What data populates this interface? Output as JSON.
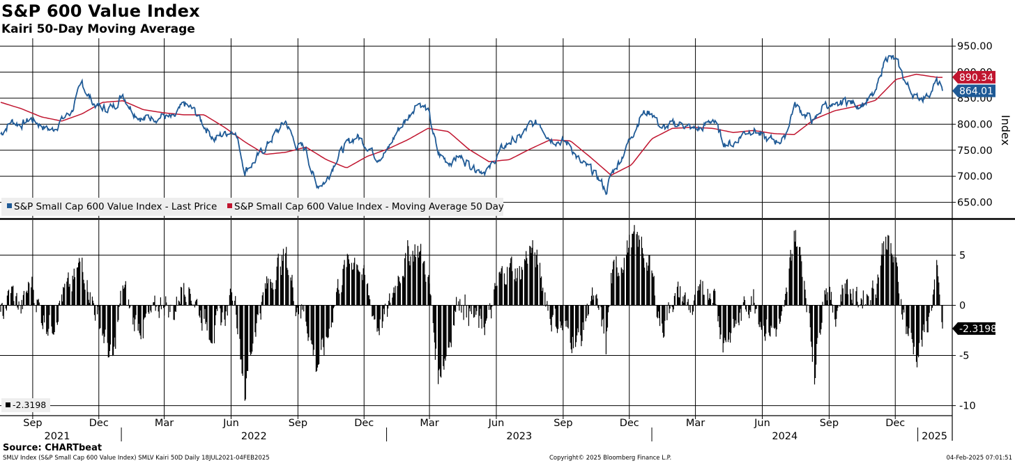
{
  "header": {
    "title": "S&P 600 Value Index",
    "subtitle": "Kairi 50-Day Moving Average"
  },
  "footer": {
    "source": "Source: CHARTbeat",
    "description": "SMLV Index (S&P Small Cap 600 Value Index) SMLV Kairi 50D  Daily 18JUL2021-04FEB2025",
    "copyright": "Copyright© 2025 Bloomberg Finance L.P.",
    "timestamp": "04-Feb-2025 07:01:51"
  },
  "colors": {
    "price": "#1f5a96",
    "moving_average": "#c0152f",
    "kairi": "#000000",
    "grid": "#000000"
  },
  "chart_data": [
    {
      "type": "line",
      "panel": "top",
      "ylabel": "Index",
      "ylim": [
        620,
        965
      ],
      "yticks": [
        "650.00",
        "700.00",
        "750.00",
        "800.00",
        "850.00",
        "900.00",
        "950.00"
      ],
      "legend_placement": "bottom-left",
      "grid": true,
      "series": [
        {
          "name": "S&P Small Cap 600 Value Index - Last Price",
          "last_value_label": "864.01",
          "points": [
            [
              "2021-07-19",
              781
            ],
            [
              "2021-08-02",
              806
            ],
            [
              "2021-08-16",
              800
            ],
            [
              "2021-08-30",
              810
            ],
            [
              "2021-09-13",
              798
            ],
            [
              "2021-09-27",
              788
            ],
            [
              "2021-10-11",
              808
            ],
            [
              "2021-10-25",
              826
            ],
            [
              "2021-11-08",
              878
            ],
            [
              "2021-11-22",
              842
            ],
            [
              "2021-12-06",
              830
            ],
            [
              "2021-12-20",
              832
            ],
            [
              "2022-01-03",
              858
            ],
            [
              "2022-01-17",
              826
            ],
            [
              "2022-01-31",
              810
            ],
            [
              "2022-02-14",
              814
            ],
            [
              "2022-02-28",
              816
            ],
            [
              "2022-03-14",
              808
            ],
            [
              "2022-03-28",
              838
            ],
            [
              "2022-04-11",
              826
            ],
            [
              "2022-04-25",
              798
            ],
            [
              "2022-05-09",
              772
            ],
            [
              "2022-05-23",
              782
            ],
            [
              "2022-06-06",
              792
            ],
            [
              "2022-06-20",
              712
            ],
            [
              "2022-07-04",
              730
            ],
            [
              "2022-07-18",
              755
            ],
            [
              "2022-08-01",
              782
            ],
            [
              "2022-08-15",
              806
            ],
            [
              "2022-08-29",
              760
            ],
            [
              "2022-09-12",
              752
            ],
            [
              "2022-09-26",
              682
            ],
            [
              "2022-10-10",
              692
            ],
            [
              "2022-10-24",
              736
            ],
            [
              "2022-11-07",
              760
            ],
            [
              "2022-11-21",
              778
            ],
            [
              "2022-12-05",
              760
            ],
            [
              "2022-12-19",
              738
            ],
            [
              "2023-01-02",
              748
            ],
            [
              "2023-01-16",
              788
            ],
            [
              "2023-01-30",
              812
            ],
            [
              "2023-02-13",
              846
            ],
            [
              "2023-02-27",
              826
            ],
            [
              "2023-03-13",
              742
            ],
            [
              "2023-03-27",
              728
            ],
            [
              "2023-04-10",
              738
            ],
            [
              "2023-04-24",
              725
            ],
            [
              "2023-05-08",
              714
            ],
            [
              "2023-05-22",
              712
            ],
            [
              "2023-06-05",
              746
            ],
            [
              "2023-06-19",
              766
            ],
            [
              "2023-07-03",
              772
            ],
            [
              "2023-07-17",
              798
            ],
            [
              "2023-07-31",
              802
            ],
            [
              "2023-08-14",
              774
            ],
            [
              "2023-08-28",
              768
            ],
            [
              "2023-09-11",
              760
            ],
            [
              "2023-09-25",
              724
            ],
            [
              "2023-10-09",
              712
            ],
            [
              "2023-10-23",
              690
            ],
            [
              "2023-10-30",
              670
            ],
            [
              "2023-11-06",
              702
            ],
            [
              "2023-11-20",
              736
            ],
            [
              "2023-12-04",
              778
            ],
            [
              "2023-12-18",
              820
            ],
            [
              "2024-01-01",
              824
            ],
            [
              "2024-01-15",
              790
            ],
            [
              "2024-01-29",
              798
            ],
            [
              "2024-02-12",
              802
            ],
            [
              "2024-02-26",
              790
            ],
            [
              "2024-03-11",
              792
            ],
            [
              "2024-03-25",
              812
            ],
            [
              "2024-04-08",
              766
            ],
            [
              "2024-04-22",
              762
            ],
            [
              "2024-05-06",
              784
            ],
            [
              "2024-05-20",
              792
            ],
            [
              "2024-06-03",
              772
            ],
            [
              "2024-06-17",
              768
            ],
            [
              "2024-07-01",
              770
            ],
            [
              "2024-07-15",
              838
            ],
            [
              "2024-07-29",
              820
            ],
            [
              "2024-08-12",
              804
            ],
            [
              "2024-08-26",
              842
            ],
            [
              "2024-09-09",
              828
            ],
            [
              "2024-09-23",
              846
            ],
            [
              "2024-10-07",
              838
            ],
            [
              "2024-10-21",
              842
            ],
            [
              "2024-11-04",
              858
            ],
            [
              "2024-11-18",
              932
            ],
            [
              "2024-12-02",
              922
            ],
            [
              "2024-12-16",
              878
            ],
            [
              "2024-12-30",
              850
            ],
            [
              "2025-01-13",
              855
            ],
            [
              "2025-01-27",
              880
            ],
            [
              "2025-02-04",
              864
            ]
          ]
        },
        {
          "name": "S&P Small Cap 600 Value Index - Moving Average 50 Day",
          "last_value_label": "890.34",
          "points": [
            [
              "2021-07-19",
              842
            ],
            [
              "2021-08-16",
              830
            ],
            [
              "2021-09-13",
              814
            ],
            [
              "2021-10-11",
              806
            ],
            [
              "2021-11-08",
              820
            ],
            [
              "2021-12-06",
              842
            ],
            [
              "2022-01-03",
              845
            ],
            [
              "2022-01-31",
              828
            ],
            [
              "2022-02-28",
              822
            ],
            [
              "2022-03-28",
              818
            ],
            [
              "2022-04-25",
              818
            ],
            [
              "2022-05-23",
              794
            ],
            [
              "2022-06-20",
              766
            ],
            [
              "2022-07-18",
              742
            ],
            [
              "2022-08-15",
              746
            ],
            [
              "2022-09-12",
              756
            ],
            [
              "2022-10-10",
              732
            ],
            [
              "2022-11-07",
              716
            ],
            [
              "2022-12-05",
              738
            ],
            [
              "2023-01-02",
              752
            ],
            [
              "2023-01-30",
              770
            ],
            [
              "2023-02-27",
              792
            ],
            [
              "2023-03-27",
              786
            ],
            [
              "2023-04-24",
              752
            ],
            [
              "2023-05-22",
              728
            ],
            [
              "2023-06-19",
              732
            ],
            [
              "2023-07-17",
              752
            ],
            [
              "2023-08-14",
              770
            ],
            [
              "2023-09-11",
              768
            ],
            [
              "2023-10-09",
              736
            ],
            [
              "2023-11-06",
              702
            ],
            [
              "2023-12-04",
              722
            ],
            [
              "2024-01-01",
              772
            ],
            [
              "2024-01-29",
              792
            ],
            [
              "2024-02-26",
              794
            ],
            [
              "2024-03-25",
              792
            ],
            [
              "2024-04-22",
              784
            ],
            [
              "2024-05-20",
              788
            ],
            [
              "2024-06-17",
              782
            ],
            [
              "2024-07-15",
              780
            ],
            [
              "2024-08-12",
              810
            ],
            [
              "2024-09-09",
              826
            ],
            [
              "2024-10-07",
              834
            ],
            [
              "2024-11-04",
              846
            ],
            [
              "2024-12-02",
              886
            ],
            [
              "2024-12-30",
              896
            ],
            [
              "2025-01-27",
              890
            ],
            [
              "2025-02-04",
              890
            ]
          ]
        }
      ]
    },
    {
      "type": "bar",
      "panel": "bottom",
      "name": "SMLV Kairi 50D",
      "ylim": [
        -11,
        8.5
      ],
      "yticks": [
        "-10",
        "-5",
        "0",
        "5"
      ],
      "last_value_label": "-2.3198",
      "legend_entry": "-2.3198",
      "grid": true,
      "points": [
        [
          "2021-07-19",
          -1.5
        ],
        [
          "2021-08-02",
          1.5
        ],
        [
          "2021-08-16",
          -0.5
        ],
        [
          "2021-08-30",
          2.5
        ],
        [
          "2021-09-13",
          -1.0
        ],
        [
          "2021-09-27",
          -2.0
        ],
        [
          "2021-10-11",
          1.0
        ],
        [
          "2021-10-25",
          1.8
        ],
        [
          "2021-11-08",
          4.5
        ],
        [
          "2021-11-22",
          0.5
        ],
        [
          "2021-12-06",
          -2.5
        ],
        [
          "2021-12-20",
          -6.0
        ],
        [
          "2022-01-03",
          2.0
        ],
        [
          "2022-01-17",
          -1.5
        ],
        [
          "2022-01-31",
          -2.0
        ],
        [
          "2022-02-14",
          -1.0
        ],
        [
          "2022-02-28",
          0.5
        ],
        [
          "2022-03-14",
          -0.8
        ],
        [
          "2022-03-28",
          2.5
        ],
        [
          "2022-04-11",
          0.8
        ],
        [
          "2022-04-25",
          -1.5
        ],
        [
          "2022-05-09",
          -2.5
        ],
        [
          "2022-05-23",
          -1.0
        ],
        [
          "2022-06-06",
          1.5
        ],
        [
          "2022-06-20",
          -8.7
        ],
        [
          "2022-07-04",
          -2.0
        ],
        [
          "2022-07-18",
          1.5
        ],
        [
          "2022-08-01",
          3.5
        ],
        [
          "2022-08-15",
          5.0
        ],
        [
          "2022-08-29",
          0.5
        ],
        [
          "2022-09-12",
          -1.0
        ],
        [
          "2022-09-26",
          -6.0
        ],
        [
          "2022-10-10",
          -4.0
        ],
        [
          "2022-10-24",
          1.5
        ],
        [
          "2022-11-07",
          4.0
        ],
        [
          "2022-11-21",
          5.0
        ],
        [
          "2022-12-05",
          1.5
        ],
        [
          "2022-12-19",
          -2.0
        ],
        [
          "2023-01-02",
          -1.0
        ],
        [
          "2023-01-16",
          3.0
        ],
        [
          "2023-01-30",
          5.0
        ],
        [
          "2023-02-13",
          5.8
        ],
        [
          "2023-02-27",
          3.0
        ],
        [
          "2023-03-13",
          -7.0
        ],
        [
          "2023-03-27",
          -4.0
        ],
        [
          "2023-04-10",
          1.0
        ],
        [
          "2023-04-24",
          -0.5
        ],
        [
          "2023-05-08",
          -2.0
        ],
        [
          "2023-05-22",
          -1.5
        ],
        [
          "2023-06-05",
          2.5
        ],
        [
          "2023-06-19",
          4.0
        ],
        [
          "2023-07-03",
          3.0
        ],
        [
          "2023-07-17",
          5.8
        ],
        [
          "2023-07-31",
          3.5
        ],
        [
          "2023-08-14",
          -1.0
        ],
        [
          "2023-08-28",
          -2.0
        ],
        [
          "2023-09-11",
          -3.0
        ],
        [
          "2023-09-25",
          -3.5
        ],
        [
          "2023-10-09",
          1.0
        ],
        [
          "2023-10-23",
          -1.5
        ],
        [
          "2023-10-30",
          -4.0
        ],
        [
          "2023-11-06",
          2.5
        ],
        [
          "2023-11-20",
          4.5
        ],
        [
          "2023-12-04",
          6.5
        ],
        [
          "2023-12-18",
          6.0
        ],
        [
          "2024-01-01",
          3.0
        ],
        [
          "2024-01-15",
          -2.5
        ],
        [
          "2024-01-29",
          0.8
        ],
        [
          "2024-02-12",
          1.0
        ],
        [
          "2024-02-26",
          -0.5
        ],
        [
          "2024-03-11",
          1.0
        ],
        [
          "2024-03-25",
          2.0
        ],
        [
          "2024-04-08",
          -3.5
        ],
        [
          "2024-04-22",
          -2.5
        ],
        [
          "2024-05-06",
          -0.5
        ],
        [
          "2024-05-20",
          1.0
        ],
        [
          "2024-06-03",
          -2.0
        ],
        [
          "2024-06-17",
          -2.5
        ],
        [
          "2024-07-01",
          -1.5
        ],
        [
          "2024-07-15",
          7.6
        ],
        [
          "2024-07-29",
          3.0
        ],
        [
          "2024-08-12",
          -6.5
        ],
        [
          "2024-08-26",
          2.5
        ],
        [
          "2024-09-09",
          -1.0
        ],
        [
          "2024-09-23",
          2.5
        ],
        [
          "2024-10-07",
          0.5
        ],
        [
          "2024-10-21",
          1.0
        ],
        [
          "2024-11-04",
          2.0
        ],
        [
          "2024-11-18",
          7.2
        ],
        [
          "2024-12-02",
          3.5
        ],
        [
          "2024-12-16",
          -2.0
        ],
        [
          "2024-12-30",
          -5.0
        ],
        [
          "2025-01-13",
          -2.5
        ],
        [
          "2025-01-27",
          3.0
        ],
        [
          "2025-02-04",
          -2.3198
        ]
      ]
    }
  ],
  "x_axis": {
    "start": "2021-07-18",
    "end": "2025-02-04",
    "months": [
      {
        "label": "Sep",
        "date": "2021-09-01"
      },
      {
        "label": "Dec",
        "date": "2021-12-01"
      },
      {
        "label": "Mar",
        "date": "2022-03-01"
      },
      {
        "label": "Jun",
        "date": "2022-06-01"
      },
      {
        "label": "Sep",
        "date": "2022-09-01"
      },
      {
        "label": "Dec",
        "date": "2022-12-01"
      },
      {
        "label": "Mar",
        "date": "2023-03-01"
      },
      {
        "label": "Jun",
        "date": "2023-06-01"
      },
      {
        "label": "Sep",
        "date": "2023-09-01"
      },
      {
        "label": "Dec",
        "date": "2023-12-01"
      },
      {
        "label": "Mar",
        "date": "2024-03-01"
      },
      {
        "label": "Jun",
        "date": "2024-06-01"
      },
      {
        "label": "Sep",
        "date": "2024-09-01"
      },
      {
        "label": "Dec",
        "date": "2024-12-01"
      }
    ],
    "years": [
      "2021",
      "2022",
      "2023",
      "2024",
      "2025"
    ],
    "year_boundaries": [
      "2022-01-01",
      "2023-01-01",
      "2024-01-01",
      "2025-01-01"
    ]
  }
}
